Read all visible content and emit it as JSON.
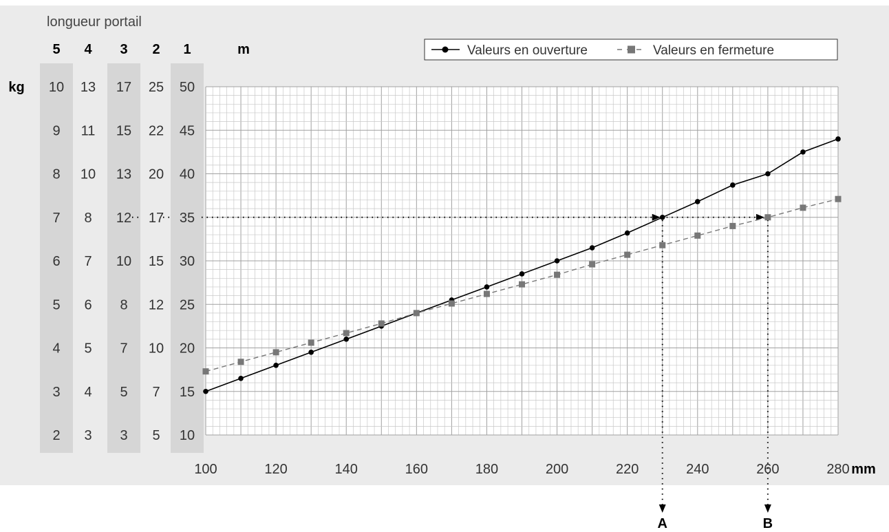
{
  "chart_data": {
    "type": "line",
    "header": "longueur portail",
    "length_columns": [
      "5",
      "4",
      "3",
      "2",
      "1"
    ],
    "length_unit": "m",
    "weight_unit": "kg",
    "x_unit": "mm",
    "x": [
      100,
      110,
      120,
      130,
      140,
      150,
      160,
      170,
      180,
      190,
      200,
      210,
      220,
      230,
      240,
      250,
      260,
      270,
      280
    ],
    "xlim": [
      100,
      280
    ],
    "x_ticks": [
      "100",
      "120",
      "140",
      "160",
      "180",
      "200",
      "220",
      "240",
      "260",
      "280"
    ],
    "ylim": [
      10,
      50
    ],
    "weight_rows": [
      [
        "10",
        "13",
        "17",
        "25",
        "50"
      ],
      [
        "9",
        "11",
        "15",
        "22",
        "45"
      ],
      [
        "8",
        "10",
        "13",
        "20",
        "40"
      ],
      [
        "7",
        "8",
        "12",
        "17",
        "35"
      ],
      [
        "6",
        "7",
        "10",
        "15",
        "30"
      ],
      [
        "5",
        "6",
        "8",
        "12",
        "25"
      ],
      [
        "4",
        "5",
        "7",
        "10",
        "20"
      ],
      [
        "3",
        "4",
        "5",
        "7",
        "15"
      ],
      [
        "2",
        "3",
        "3",
        "5",
        "10"
      ]
    ],
    "series": [
      {
        "name": "Valeurs en ouverture",
        "style": "solid-circle",
        "color": "#000000",
        "values": [
          15,
          16.5,
          18,
          19.5,
          21,
          22.5,
          24,
          25.5,
          27,
          28.5,
          30,
          31.5,
          33.2,
          35,
          36.8,
          38.7,
          40,
          42.5,
          44
        ]
      },
      {
        "name": "Valeurs en fermeture",
        "style": "dashed-square",
        "color": "#777777",
        "values": [
          17.3,
          18.4,
          19.5,
          20.6,
          21.7,
          22.8,
          24,
          25.1,
          26.2,
          27.3,
          28.4,
          29.6,
          30.7,
          31.8,
          32.9,
          34,
          35,
          36.1,
          37.1
        ]
      }
    ],
    "guide_y": 35,
    "markers": [
      {
        "label": "A",
        "x": 230
      },
      {
        "label": "B",
        "x": 260
      }
    ],
    "legend_position": "top-right",
    "grid": true
  }
}
